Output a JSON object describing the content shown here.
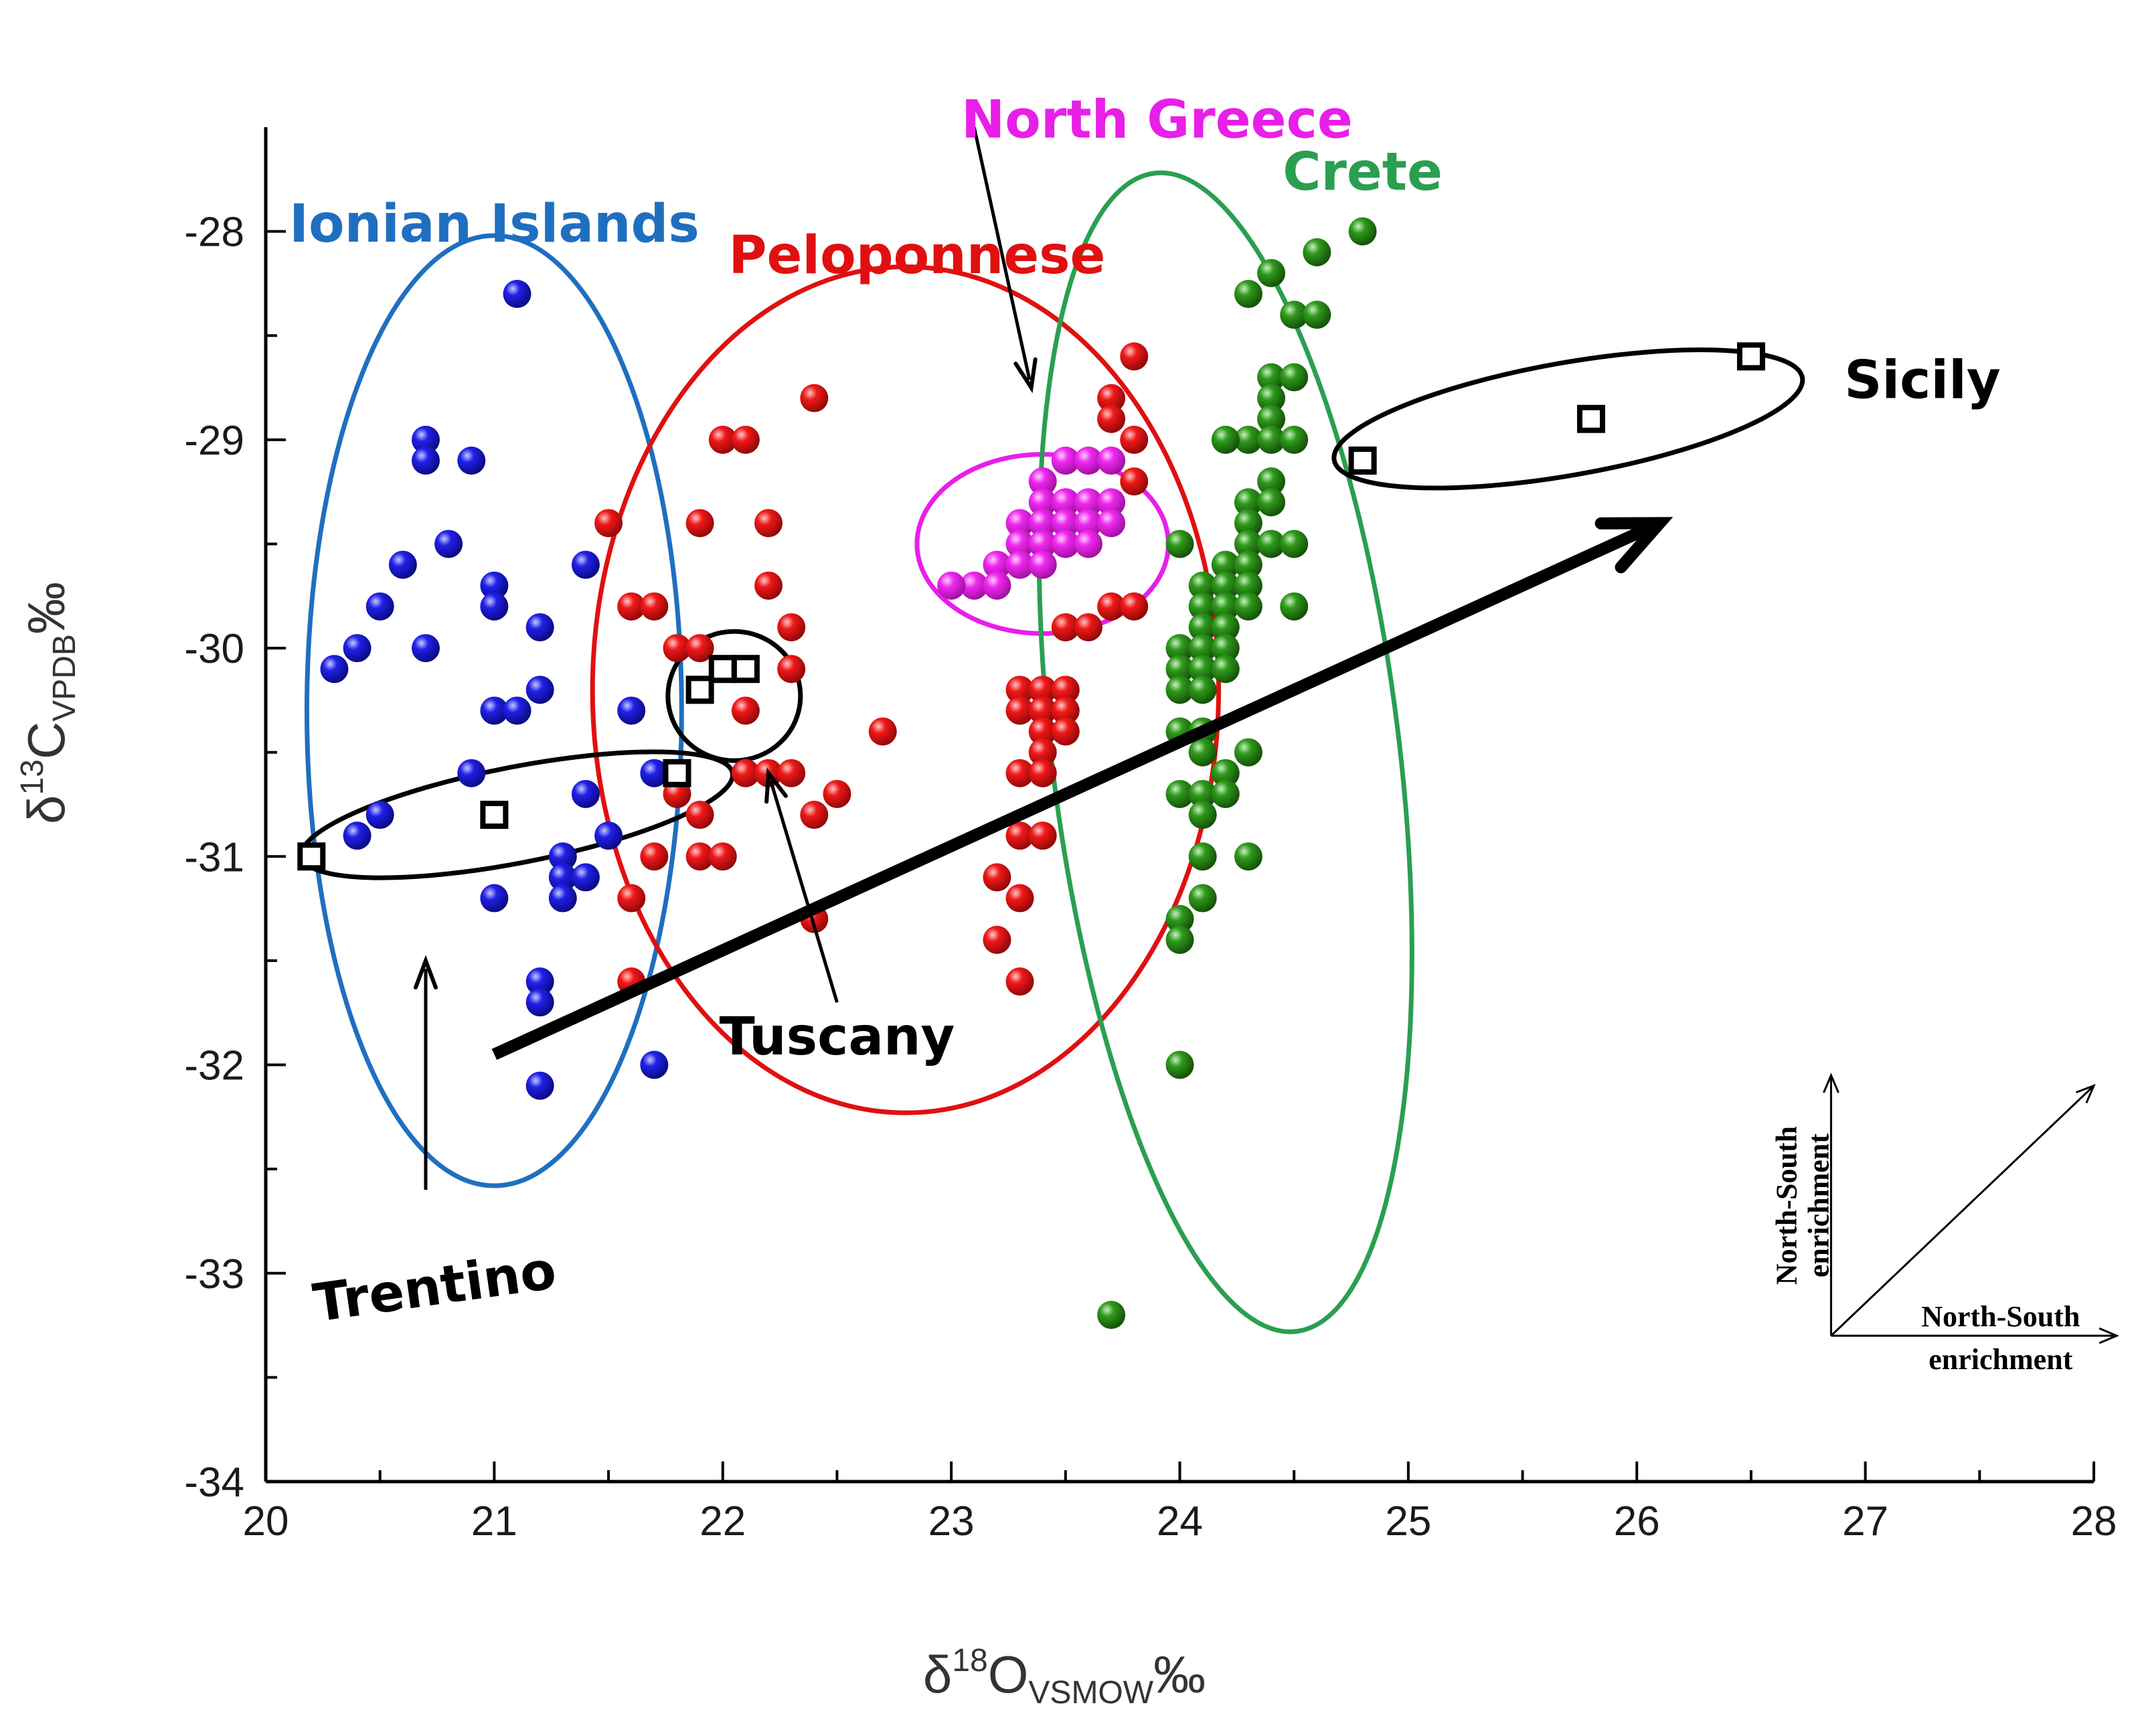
{
  "chart_data": {
    "type": "scatter",
    "title": "",
    "xlabel": {
      "main": "δ",
      "sup": "18",
      "element": "O",
      "sub": "VSMOW",
      "unit": "‰"
    },
    "ylabel": {
      "main": "δ",
      "sup": "13",
      "element": "C",
      "sub": "VPDB",
      "unit": "‰"
    },
    "xlim": [
      20,
      28
    ],
    "ylim": [
      -34,
      -27.5
    ],
    "xticks": [
      20,
      21,
      22,
      23,
      24,
      25,
      26,
      27,
      28
    ],
    "yticks": [
      -34,
      -33,
      -32,
      -31,
      -30,
      -29,
      -28
    ],
    "xtick_labels": [
      "20",
      "21",
      "22",
      "23",
      "24",
      "25",
      "26",
      "27",
      "28"
    ],
    "ytick_labels": [
      "-34",
      "-33",
      "-32",
      "-31",
      "-30",
      "-29",
      "-28"
    ],
    "series": [
      {
        "name": "Ionian Islands",
        "color": "#1a1adf",
        "marker": "sphere",
        "points": [
          [
            21.1,
            -28.3
          ],
          [
            20.7,
            -29.0
          ],
          [
            20.7,
            -29.1
          ],
          [
            20.9,
            -29.1
          ],
          [
            20.8,
            -29.5
          ],
          [
            20.6,
            -29.6
          ],
          [
            21.4,
            -29.6
          ],
          [
            21.0,
            -29.7
          ],
          [
            21.0,
            -29.8
          ],
          [
            20.5,
            -29.8
          ],
          [
            21.2,
            -29.9
          ],
          [
            20.4,
            -30.0
          ],
          [
            20.7,
            -30.0
          ],
          [
            20.3,
            -30.1
          ],
          [
            21.2,
            -30.2
          ],
          [
            21.0,
            -30.3
          ],
          [
            21.1,
            -30.3
          ],
          [
            21.6,
            -30.3
          ],
          [
            20.9,
            -30.6
          ],
          [
            21.7,
            -30.6
          ],
          [
            21.4,
            -30.7
          ],
          [
            20.5,
            -30.8
          ],
          [
            20.4,
            -30.9
          ],
          [
            21.5,
            -30.9
          ],
          [
            21.3,
            -31.0
          ],
          [
            21.3,
            -31.1
          ],
          [
            21.4,
            -31.1
          ],
          [
            21.0,
            -31.2
          ],
          [
            21.3,
            -31.2
          ],
          [
            21.2,
            -31.6
          ],
          [
            21.2,
            -31.7
          ],
          [
            21.7,
            -32.0
          ],
          [
            21.2,
            -32.1
          ]
        ]
      },
      {
        "name": "Peloponnese",
        "color": "#e01010",
        "marker": "sphere",
        "points": [
          [
            22.4,
            -28.8
          ],
          [
            23.8,
            -28.6
          ],
          [
            22.0,
            -29.0
          ],
          [
            22.1,
            -29.0
          ],
          [
            23.7,
            -28.8
          ],
          [
            23.7,
            -28.9
          ],
          [
            23.8,
            -29.0
          ],
          [
            23.8,
            -29.2
          ],
          [
            21.5,
            -29.4
          ],
          [
            21.9,
            -29.4
          ],
          [
            22.2,
            -29.4
          ],
          [
            22.2,
            -29.7
          ],
          [
            21.6,
            -29.8
          ],
          [
            21.7,
            -29.8
          ],
          [
            23.7,
            -29.8
          ],
          [
            23.8,
            -29.8
          ],
          [
            22.3,
            -29.9
          ],
          [
            23.5,
            -29.9
          ],
          [
            23.6,
            -29.9
          ],
          [
            21.8,
            -30.0
          ],
          [
            21.9,
            -30.0
          ],
          [
            22.3,
            -30.1
          ],
          [
            23.3,
            -30.2
          ],
          [
            23.4,
            -30.2
          ],
          [
            23.5,
            -30.2
          ],
          [
            22.1,
            -30.3
          ],
          [
            23.3,
            -30.3
          ],
          [
            23.4,
            -30.3
          ],
          [
            23.5,
            -30.3
          ],
          [
            22.7,
            -30.4
          ],
          [
            23.4,
            -30.4
          ],
          [
            23.5,
            -30.4
          ],
          [
            23.4,
            -30.5
          ],
          [
            23.4,
            -30.6
          ],
          [
            22.1,
            -30.6
          ],
          [
            22.2,
            -30.6
          ],
          [
            22.3,
            -30.6
          ],
          [
            23.3,
            -30.6
          ],
          [
            23.4,
            -30.6
          ],
          [
            22.5,
            -30.7
          ],
          [
            21.8,
            -30.7
          ],
          [
            21.9,
            -30.8
          ],
          [
            22.4,
            -30.8
          ],
          [
            23.3,
            -30.9
          ],
          [
            23.4,
            -30.9
          ],
          [
            21.7,
            -31.0
          ],
          [
            21.9,
            -31.0
          ],
          [
            22.0,
            -31.0
          ],
          [
            23.2,
            -31.1
          ],
          [
            23.3,
            -31.2
          ],
          [
            21.6,
            -31.2
          ],
          [
            23.2,
            -31.4
          ],
          [
            21.6,
            -31.6
          ],
          [
            23.3,
            -31.6
          ],
          [
            22.4,
            -31.3
          ]
        ]
      },
      {
        "name": "North Greece",
        "color": "#e81fe8",
        "marker": "sphere",
        "points": [
          [
            23.4,
            -29.2
          ],
          [
            23.5,
            -29.1
          ],
          [
            23.6,
            -29.1
          ],
          [
            23.7,
            -29.1
          ],
          [
            23.4,
            -29.3
          ],
          [
            23.5,
            -29.3
          ],
          [
            23.6,
            -29.3
          ],
          [
            23.7,
            -29.3
          ],
          [
            23.3,
            -29.4
          ],
          [
            23.4,
            -29.4
          ],
          [
            23.5,
            -29.4
          ],
          [
            23.6,
            -29.4
          ],
          [
            23.7,
            -29.4
          ],
          [
            23.3,
            -29.5
          ],
          [
            23.4,
            -29.5
          ],
          [
            23.5,
            -29.5
          ],
          [
            23.6,
            -29.5
          ],
          [
            23.2,
            -29.6
          ],
          [
            23.3,
            -29.6
          ],
          [
            23.4,
            -29.6
          ],
          [
            23.1,
            -29.7
          ],
          [
            23.2,
            -29.7
          ],
          [
            23.0,
            -29.7
          ]
        ]
      },
      {
        "name": "Crete",
        "color": "#2a9018",
        "marker": "sphere",
        "points": [
          [
            24.8,
            -28.0
          ],
          [
            24.6,
            -28.1
          ],
          [
            24.4,
            -28.2
          ],
          [
            24.3,
            -28.3
          ],
          [
            24.5,
            -28.4
          ],
          [
            24.6,
            -28.4
          ],
          [
            24.4,
            -28.7
          ],
          [
            24.5,
            -28.7
          ],
          [
            24.4,
            -28.8
          ],
          [
            24.4,
            -28.9
          ],
          [
            24.3,
            -29.0
          ],
          [
            24.4,
            -29.0
          ],
          [
            24.5,
            -29.0
          ],
          [
            24.2,
            -29.0
          ],
          [
            24.4,
            -29.2
          ],
          [
            24.3,
            -29.3
          ],
          [
            24.4,
            -29.3
          ],
          [
            24.3,
            -29.4
          ],
          [
            24.0,
            -29.5
          ],
          [
            24.3,
            -29.5
          ],
          [
            24.4,
            -29.5
          ],
          [
            24.5,
            -29.5
          ],
          [
            24.2,
            -29.6
          ],
          [
            24.3,
            -29.6
          ],
          [
            24.1,
            -29.7
          ],
          [
            24.2,
            -29.7
          ],
          [
            24.3,
            -29.7
          ],
          [
            24.1,
            -29.8
          ],
          [
            24.2,
            -29.8
          ],
          [
            24.3,
            -29.8
          ],
          [
            24.5,
            -29.8
          ],
          [
            24.1,
            -29.9
          ],
          [
            24.2,
            -29.9
          ],
          [
            24.0,
            -30.0
          ],
          [
            24.1,
            -30.0
          ],
          [
            24.2,
            -30.0
          ],
          [
            24.0,
            -30.1
          ],
          [
            24.1,
            -30.1
          ],
          [
            24.2,
            -30.1
          ],
          [
            24.0,
            -30.2
          ],
          [
            24.1,
            -30.2
          ],
          [
            24.0,
            -30.4
          ],
          [
            24.1,
            -30.4
          ],
          [
            24.1,
            -30.5
          ],
          [
            24.3,
            -30.5
          ],
          [
            24.2,
            -30.6
          ],
          [
            24.0,
            -30.7
          ],
          [
            24.1,
            -30.7
          ],
          [
            24.2,
            -30.7
          ],
          [
            24.1,
            -30.8
          ],
          [
            24.1,
            -31.0
          ],
          [
            24.3,
            -31.0
          ],
          [
            24.1,
            -31.2
          ],
          [
            24.0,
            -31.3
          ],
          [
            24.0,
            -31.4
          ],
          [
            24.0,
            -32.0
          ],
          [
            23.7,
            -33.2
          ]
        ]
      },
      {
        "name": "Trentino",
        "color": "#000000",
        "marker": "open-square",
        "points": [
          [
            20.2,
            -31.0
          ],
          [
            21.0,
            -30.8
          ],
          [
            21.8,
            -30.6
          ]
        ]
      },
      {
        "name": "Tuscany",
        "color": "#000000",
        "marker": "open-square",
        "points": [
          [
            21.9,
            -30.2
          ],
          [
            22.0,
            -30.1
          ],
          [
            22.1,
            -30.1
          ]
        ]
      },
      {
        "name": "Sicily",
        "color": "#000000",
        "marker": "open-square",
        "points": [
          [
            24.8,
            -29.1
          ],
          [
            25.8,
            -28.9
          ],
          [
            26.5,
            -28.6
          ]
        ]
      }
    ],
    "ellipses": [
      {
        "name": "Ionian Islands",
        "color": "#1f6fc0",
        "cx": 21.0,
        "cy": -30.3,
        "rx": 0.82,
        "ry": 2.28,
        "angle": 0
      },
      {
        "name": "Peloponnese",
        "color": "#e01010",
        "cx": 22.8,
        "cy": -30.2,
        "rx": 1.37,
        "ry": 2.03,
        "angle": 0
      },
      {
        "name": "North Greece",
        "color": "#e81fe8",
        "cx": 23.4,
        "cy": -29.5,
        "rx": 0.55,
        "ry": 0.43,
        "angle": 0
      },
      {
        "name": "Crete",
        "color": "#2a9f50",
        "cx": 24.2,
        "cy": -30.5,
        "rx": 0.76,
        "ry": 2.8,
        "angle": -7
      },
      {
        "name": "Trentino",
        "color": "#000000",
        "cx": 21.1,
        "cy": -30.8,
        "rx": 0.96,
        "ry": 0.23,
        "angle": -11
      },
      {
        "name": "Tuscany",
        "color": "#000000",
        "cx": 22.05,
        "cy": -30.23,
        "rx": 0.29,
        "ry": 0.31,
        "angle": 0
      },
      {
        "name": "Sicily",
        "color": "#000000",
        "cx": 25.7,
        "cy": -28.9,
        "rx": 1.04,
        "ry": 0.27,
        "angle": -10
      }
    ],
    "labels": [
      {
        "text": "North Greece",
        "color": "#e81fe8",
        "x": 23.9,
        "y": -27.55,
        "rotate": 0
      },
      {
        "text": "Crete",
        "color": "#2a9f50",
        "x": 24.8,
        "y": -27.8,
        "rotate": 0
      },
      {
        "text": "Ionian Islands",
        "color": "#1f6fc0",
        "x": 21.0,
        "y": -28.05,
        "rotate": 0
      },
      {
        "text": "Peloponnese",
        "color": "#e01010",
        "x": 22.85,
        "y": -28.2,
        "rotate": 0
      },
      {
        "text": "Sicily",
        "color": "#000000",
        "x": 27.25,
        "y": -28.8,
        "rotate": 0
      },
      {
        "text": "Tuscany",
        "color": "#000000",
        "x": 22.5,
        "y": -31.95,
        "rotate": 0
      },
      {
        "text": "Trentino",
        "color": "#000000",
        "x": 20.75,
        "y": -33.15,
        "rotate": -8
      }
    ],
    "arrows": [
      {
        "name": "north-greece-pointer",
        "from": [
          23.1,
          -27.5
        ],
        "to": [
          23.35,
          -28.75
        ],
        "width": 5
      },
      {
        "name": "trentino-pointer",
        "from": [
          20.7,
          -32.6
        ],
        "to": [
          20.7,
          -31.5
        ],
        "width": 5
      },
      {
        "name": "tuscany-pointer",
        "from": [
          22.5,
          -31.7
        ],
        "to": [
          22.2,
          -30.6
        ],
        "width": 5
      },
      {
        "name": "north-south-trend-arrow",
        "from": [
          21.0,
          -31.95
        ],
        "to": [
          26.1,
          -29.4
        ],
        "width": 18
      }
    ],
    "inset_legend": {
      "vertical_label_line1": "North-South",
      "vertical_label_line2": "enrichment",
      "horizontal_label_line1": "North-South",
      "horizontal_label_line2": "enrichment",
      "origin": [
        26.85,
        -33.3
      ],
      "vertical_end": [
        26.85,
        -32.05
      ],
      "horizontal_end": [
        28.1,
        -33.3
      ],
      "diagonal_end": [
        28.0,
        -32.1
      ]
    }
  }
}
